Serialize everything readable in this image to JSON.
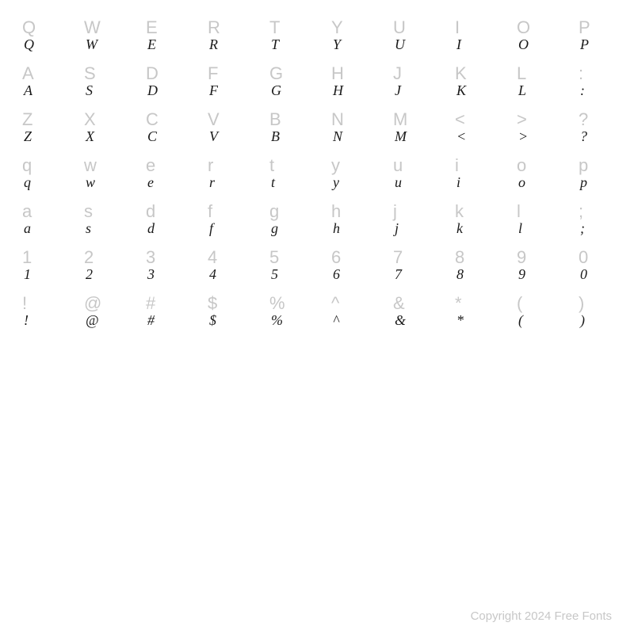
{
  "grid": {
    "columns": 10,
    "rows": [
      [
        "Q",
        "W",
        "E",
        "R",
        "T",
        "Y",
        "U",
        "I",
        "O",
        "P"
      ],
      [
        "A",
        "S",
        "D",
        "F",
        "G",
        "H",
        "J",
        "K",
        "L",
        ":"
      ],
      [
        "Z",
        "X",
        "C",
        "V",
        "B",
        "N",
        "M",
        "<",
        ">",
        "?"
      ],
      [
        "q",
        "w",
        "e",
        "r",
        "t",
        "y",
        "u",
        "i",
        "o",
        "p"
      ],
      [
        "a",
        "s",
        "d",
        "f",
        "g",
        "h",
        "j",
        "k",
        "l",
        ";"
      ],
      [
        "1",
        "2",
        "3",
        "4",
        "5",
        "6",
        "7",
        "8",
        "9",
        "0"
      ],
      [
        "!",
        "@",
        "#",
        "$",
        "%",
        "^",
        "&",
        "*",
        "(",
        ")"
      ]
    ],
    "ref_color": "#c7c7c7",
    "sample_color": "#1a1a1a",
    "ref_fontsize": 22,
    "sample_fontsize": 18,
    "background_color": "#ffffff"
  },
  "footer": {
    "copyright": "Copyright 2024 Free Fonts"
  }
}
